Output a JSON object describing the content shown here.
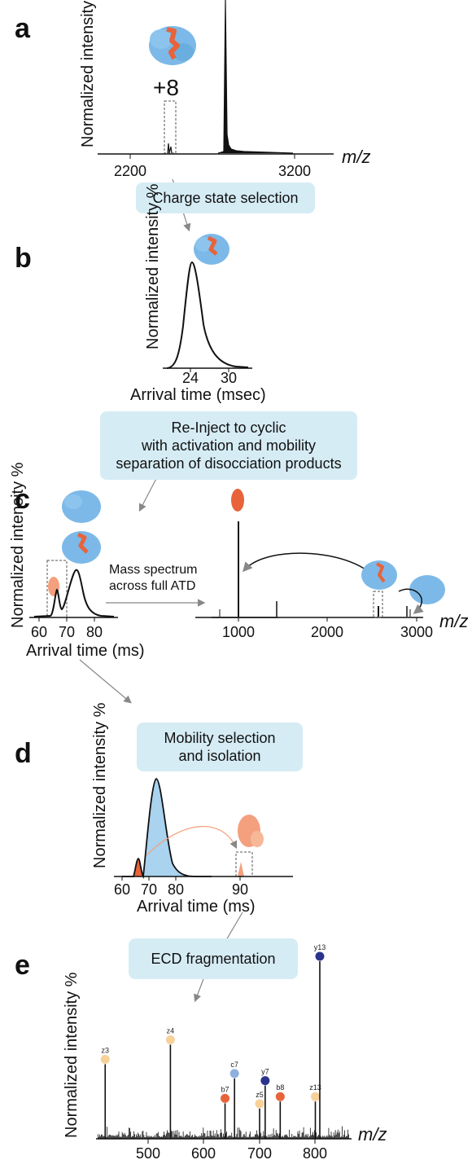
{
  "panels": {
    "a": {
      "letter": "a",
      "ylabel": "Normalized intensity %",
      "charge": "+8",
      "ticks": [
        "2200",
        "3200"
      ],
      "xunit": "m/z"
    },
    "b": {
      "letter": "b",
      "ylabel": "Normalized intensity %",
      "ticks": [
        "24",
        "30"
      ],
      "xlabel": "Arrival time (msec)"
    },
    "c": {
      "letter": "c",
      "ylabel": "Normalized intensity %",
      "ticks_left": [
        "60",
        "70",
        "80"
      ],
      "xlabel_left": "Arrival time (ms)",
      "arrow_label": "Mass spectrum\nacross full ATD",
      "ticks_right": [
        "1000",
        "2000",
        "3000"
      ],
      "xunit_right": "m/z"
    },
    "d": {
      "letter": "d",
      "ylabel": "Normalized intensity %",
      "ticks": [
        "60",
        "70",
        "80",
        "90"
      ],
      "xlabel": "Arrival time (ms)"
    },
    "e": {
      "letter": "e",
      "ylabel": "Normalized intensity %",
      "ticks": [
        "500",
        "600",
        "700",
        "800"
      ],
      "xunit": "m/z"
    }
  },
  "steps": {
    "s1": "Charge state selection",
    "s2": "Re-Inject to cyclic\nwith activation and mobility\nseparation of disocciation products",
    "s3": "Mobility selection\nand isolation",
    "s4": "ECD fragmentation"
  },
  "ions": [
    {
      "label": "z3",
      "mz": 423,
      "rel": 0.42,
      "color": "#f7d19a"
    },
    {
      "label": "z4",
      "mz": 540,
      "rel": 0.53,
      "color": "#f7d19a"
    },
    {
      "label": "b7",
      "mz": 638,
      "rel": 0.2,
      "color": "#e8633a"
    },
    {
      "label": "c7",
      "mz": 655,
      "rel": 0.34,
      "color": "#8fb0de"
    },
    {
      "label": "z5",
      "mz": 700,
      "rel": 0.17,
      "color": "#f7d19a"
    },
    {
      "label": "y7",
      "mz": 710,
      "rel": 0.3,
      "color": "#2b348c"
    },
    {
      "label": "b8",
      "mz": 737,
      "rel": 0.21,
      "color": "#e8633a"
    },
    {
      "label": "z13",
      "mz": 800,
      "rel": 0.21,
      "color": "#f7d19a"
    },
    {
      "label": "y13",
      "mz": 808,
      "rel": 1.0,
      "color": "#2b348c"
    }
  ],
  "colors": {
    "protein": "#7cb9e8",
    "ligand": "#e8633a",
    "ligand_light": "#f4a07e",
    "box": "#d6ecf5",
    "arrow": "#888888",
    "peak_fill": "#a9d3ef"
  }
}
